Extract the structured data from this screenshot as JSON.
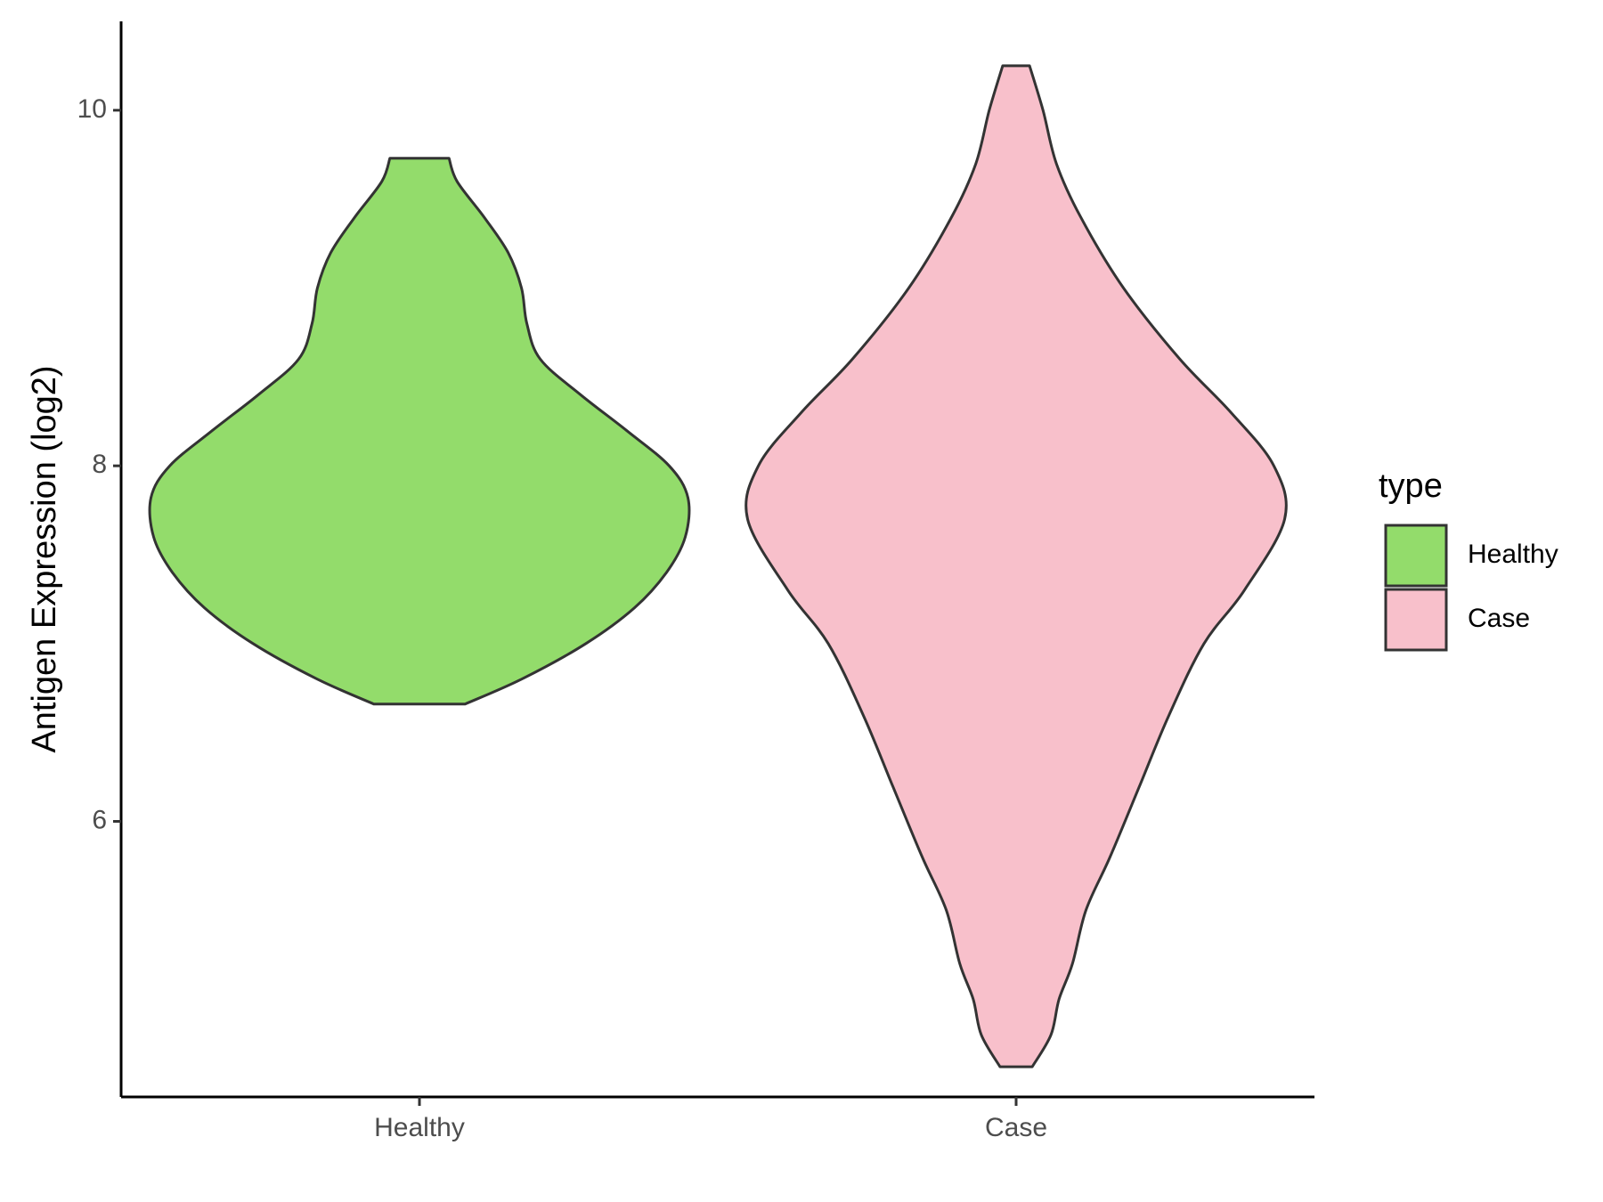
{
  "chart_data": {
    "type": "violin",
    "title": "",
    "xlabel": "",
    "ylabel": "Antigen Expression (log2)",
    "categories": [
      "Healthy",
      "Case"
    ],
    "ylim": [
      4.45,
      10.5
    ],
    "yticks": [
      6,
      8,
      10
    ],
    "grid": false,
    "legend": {
      "title": "type",
      "position": "right",
      "entries": [
        {
          "label": "Healthy",
          "color": "#93dc6b"
        },
        {
          "label": "Case",
          "color": "#f8c0cb"
        }
      ]
    },
    "series": [
      {
        "name": "Healthy",
        "color": "#93dc6b",
        "min": 6.66,
        "max": 9.73,
        "density_profile": [
          [
            6.66,
            0.17
          ],
          [
            6.8,
            0.38
          ],
          [
            7.0,
            0.62
          ],
          [
            7.2,
            0.8
          ],
          [
            7.4,
            0.92
          ],
          [
            7.6,
            0.99
          ],
          [
            7.82,
            1.0
          ],
          [
            8.0,
            0.93
          ],
          [
            8.2,
            0.77
          ],
          [
            8.4,
            0.6
          ],
          [
            8.6,
            0.45
          ],
          [
            8.8,
            0.4
          ],
          [
            9.0,
            0.38
          ],
          [
            9.2,
            0.33
          ],
          [
            9.4,
            0.24
          ],
          [
            9.6,
            0.14
          ],
          [
            9.73,
            0.11
          ]
        ]
      },
      {
        "name": "Case",
        "color": "#f8c0cb",
        "min": 4.62,
        "max": 10.25,
        "density_profile": [
          [
            4.62,
            0.06
          ],
          [
            4.8,
            0.13
          ],
          [
            5.0,
            0.16
          ],
          [
            5.2,
            0.21
          ],
          [
            5.5,
            0.26
          ],
          [
            5.8,
            0.35
          ],
          [
            6.2,
            0.46
          ],
          [
            6.6,
            0.57
          ],
          [
            7.0,
            0.7
          ],
          [
            7.3,
            0.85
          ],
          [
            7.7,
            1.0
          ],
          [
            8.0,
            0.96
          ],
          [
            8.3,
            0.8
          ],
          [
            8.6,
            0.61
          ],
          [
            9.0,
            0.4
          ],
          [
            9.4,
            0.24
          ],
          [
            9.7,
            0.15
          ],
          [
            10.0,
            0.1
          ],
          [
            10.25,
            0.05
          ]
        ]
      }
    ]
  }
}
